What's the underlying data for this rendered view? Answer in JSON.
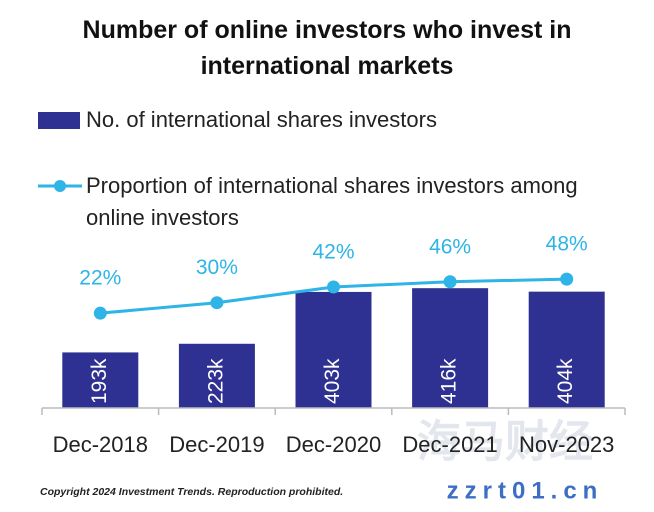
{
  "chart_data": {
    "type": "bar",
    "title": "Number of online investors who invest in international markets",
    "categories": [
      "Dec-2018",
      "Dec-2019",
      "Dec-2020",
      "Dec-2021",
      "Nov-2023"
    ],
    "series": [
      {
        "name": "No. of international shares investors",
        "type": "bar",
        "color": "#2e3192",
        "values": [
          193,
          223,
          403,
          416,
          404
        ],
        "value_labels": [
          "193k",
          "223k",
          "403k",
          "416k",
          "404k"
        ]
      },
      {
        "name": "Proportion of international shares investors among online investors",
        "type": "line",
        "color": "#2eb4e6",
        "values": [
          22,
          30,
          42,
          46,
          48
        ],
        "value_labels": [
          "22%",
          "30%",
          "42%",
          "46%",
          "48%"
        ]
      }
    ]
  },
  "footer": {
    "copyright": "Copyright 2024 Investment Trends. Reproduction prohibited."
  },
  "watermark": {
    "brand": "海马财经",
    "url": "zzrt01.cn"
  }
}
